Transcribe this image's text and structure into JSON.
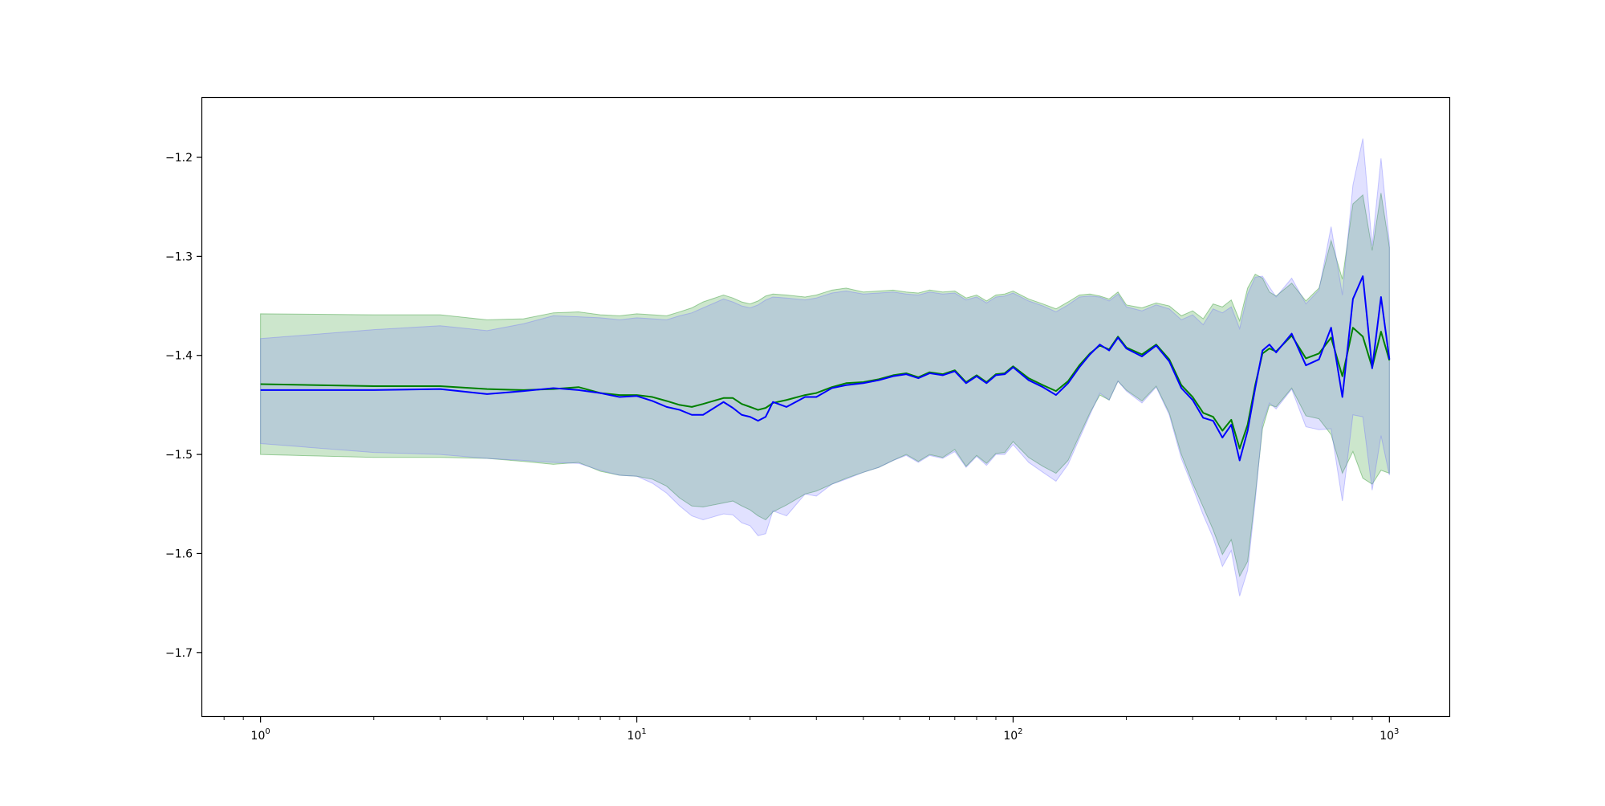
{
  "chart_data": {
    "type": "line",
    "title": "",
    "xlabel": "",
    "ylabel": "",
    "x_scale": "log",
    "xlim": [
      0.7,
      1450
    ],
    "ylim": [
      -1.765,
      -1.14
    ],
    "grid": false,
    "legend": "none",
    "x_ticks": [
      {
        "value": 1,
        "base": "10",
        "exp": "0"
      },
      {
        "value": 10,
        "base": "10",
        "exp": "1"
      },
      {
        "value": 100,
        "base": "10",
        "exp": "2"
      },
      {
        "value": 1000,
        "base": "10",
        "exp": "3"
      }
    ],
    "y_ticks": [
      {
        "value": -1.2,
        "label": "−1.2"
      },
      {
        "value": -1.3,
        "label": "−1.3"
      },
      {
        "value": -1.4,
        "label": "−1.4"
      },
      {
        "value": -1.5,
        "label": "−1.5"
      },
      {
        "value": -1.6,
        "label": "−1.6"
      },
      {
        "value": -1.7,
        "label": "−1.7"
      }
    ],
    "series": [
      {
        "color": "#008000",
        "band_color": "#008000",
        "x": [
          1,
          2,
          3,
          4,
          5,
          6,
          7,
          8,
          9,
          10,
          11,
          12,
          13,
          14,
          15,
          17,
          18,
          19,
          20,
          21,
          22,
          23,
          25,
          28,
          30,
          33,
          36,
          40,
          44,
          48,
          52,
          56,
          60,
          65,
          70,
          75,
          80,
          85,
          90,
          95,
          100,
          110,
          120,
          130,
          140,
          150,
          160,
          170,
          180,
          190,
          200,
          220,
          240,
          260,
          280,
          300,
          320,
          340,
          360,
          380,
          400,
          420,
          440,
          460,
          480,
          500,
          550,
          600,
          650,
          700,
          750,
          800,
          850,
          900,
          950,
          1000
        ],
        "y": [
          -1.429,
          -1.431,
          -1.431,
          -1.434,
          -1.435,
          -1.434,
          -1.432,
          -1.438,
          -1.44,
          -1.44,
          -1.442,
          -1.446,
          -1.45,
          -1.452,
          -1.449,
          -1.443,
          -1.443,
          -1.449,
          -1.452,
          -1.455,
          -1.453,
          -1.448,
          -1.445,
          -1.44,
          -1.438,
          -1.432,
          -1.428,
          -1.427,
          -1.424,
          -1.42,
          -1.418,
          -1.422,
          -1.417,
          -1.419,
          -1.415,
          -1.427,
          -1.42,
          -1.427,
          -1.419,
          -1.418,
          -1.411,
          -1.423,
          -1.43,
          -1.436,
          -1.426,
          -1.41,
          -1.398,
          -1.39,
          -1.394,
          -1.381,
          -1.392,
          -1.399,
          -1.389,
          -1.404,
          -1.43,
          -1.442,
          -1.458,
          -1.462,
          -1.476,
          -1.465,
          -1.494,
          -1.47,
          -1.43,
          -1.398,
          -1.393,
          -1.396,
          -1.38,
          -1.403,
          -1.398,
          -1.382,
          -1.421,
          -1.372,
          -1.381,
          -1.412,
          -1.376,
          -1.405
        ],
        "upper": [
          -1.358,
          -1.359,
          -1.359,
          -1.364,
          -1.363,
          -1.357,
          -1.356,
          -1.359,
          -1.36,
          -1.358,
          -1.359,
          -1.36,
          -1.356,
          -1.352,
          -1.346,
          -1.339,
          -1.342,
          -1.346,
          -1.348,
          -1.345,
          -1.34,
          -1.338,
          -1.339,
          -1.341,
          -1.339,
          -1.334,
          -1.332,
          -1.336,
          -1.335,
          -1.334,
          -1.336,
          -1.337,
          -1.334,
          -1.336,
          -1.335,
          -1.342,
          -1.339,
          -1.345,
          -1.339,
          -1.338,
          -1.335,
          -1.343,
          -1.348,
          -1.353,
          -1.346,
          -1.339,
          -1.338,
          -1.34,
          -1.343,
          -1.336,
          -1.349,
          -1.352,
          -1.347,
          -1.35,
          -1.36,
          -1.355,
          -1.363,
          -1.348,
          -1.351,
          -1.344,
          -1.365,
          -1.332,
          -1.318,
          -1.322,
          -1.336,
          -1.34,
          -1.327,
          -1.345,
          -1.332,
          -1.284,
          -1.323,
          -1.247,
          -1.238,
          -1.294,
          -1.236,
          -1.291
        ],
        "lower": [
          -1.5,
          -1.503,
          -1.503,
          -1.504,
          -1.507,
          -1.51,
          -1.508,
          -1.517,
          -1.521,
          -1.522,
          -1.525,
          -1.532,
          -1.544,
          -1.552,
          -1.553,
          -1.549,
          -1.547,
          -1.552,
          -1.556,
          -1.562,
          -1.566,
          -1.558,
          -1.551,
          -1.54,
          -1.537,
          -1.53,
          -1.524,
          -1.518,
          -1.513,
          -1.506,
          -1.5,
          -1.507,
          -1.5,
          -1.503,
          -1.495,
          -1.512,
          -1.501,
          -1.509,
          -1.499,
          -1.498,
          -1.487,
          -1.503,
          -1.512,
          -1.519,
          -1.506,
          -1.481,
          -1.458,
          -1.44,
          -1.445,
          -1.426,
          -1.435,
          -1.446,
          -1.431,
          -1.458,
          -1.5,
          -1.529,
          -1.553,
          -1.576,
          -1.601,
          -1.586,
          -1.623,
          -1.608,
          -1.542,
          -1.474,
          -1.45,
          -1.452,
          -1.433,
          -1.461,
          -1.464,
          -1.48,
          -1.519,
          -1.497,
          -1.524,
          -1.53,
          -1.516,
          -1.519
        ]
      },
      {
        "color": "#0000ff",
        "band_color": "#6b6bff",
        "x": [
          1,
          2,
          3,
          4,
          5,
          6,
          7,
          8,
          9,
          10,
          11,
          12,
          13,
          14,
          15,
          17,
          18,
          19,
          20,
          21,
          22,
          23,
          25,
          28,
          30,
          33,
          36,
          40,
          44,
          48,
          52,
          56,
          60,
          65,
          70,
          75,
          80,
          85,
          90,
          95,
          100,
          110,
          120,
          130,
          140,
          150,
          160,
          170,
          180,
          190,
          200,
          220,
          240,
          260,
          280,
          300,
          320,
          340,
          360,
          380,
          400,
          420,
          440,
          460,
          480,
          500,
          550,
          600,
          650,
          700,
          750,
          800,
          850,
          900,
          950,
          1000
        ],
        "y": [
          -1.435,
          -1.435,
          -1.434,
          -1.439,
          -1.436,
          -1.433,
          -1.435,
          -1.438,
          -1.442,
          -1.441,
          -1.446,
          -1.452,
          -1.455,
          -1.46,
          -1.46,
          -1.447,
          -1.453,
          -1.46,
          -1.462,
          -1.466,
          -1.462,
          -1.447,
          -1.452,
          -1.442,
          -1.442,
          -1.433,
          -1.43,
          -1.428,
          -1.425,
          -1.421,
          -1.419,
          -1.423,
          -1.418,
          -1.42,
          -1.416,
          -1.428,
          -1.421,
          -1.428,
          -1.42,
          -1.419,
          -1.412,
          -1.425,
          -1.432,
          -1.44,
          -1.428,
          -1.412,
          -1.399,
          -1.389,
          -1.395,
          -1.382,
          -1.393,
          -1.401,
          -1.39,
          -1.406,
          -1.433,
          -1.445,
          -1.463,
          -1.466,
          -1.483,
          -1.47,
          -1.506,
          -1.476,
          -1.433,
          -1.395,
          -1.389,
          -1.397,
          -1.378,
          -1.41,
          -1.404,
          -1.372,
          -1.442,
          -1.343,
          -1.32,
          -1.413,
          -1.341,
          -1.404
        ],
        "upper": [
          -1.383,
          -1.374,
          -1.37,
          -1.375,
          -1.368,
          -1.36,
          -1.361,
          -1.362,
          -1.364,
          -1.362,
          -1.363,
          -1.364,
          -1.36,
          -1.357,
          -1.352,
          -1.343,
          -1.346,
          -1.35,
          -1.352,
          -1.349,
          -1.344,
          -1.341,
          -1.342,
          -1.344,
          -1.342,
          -1.337,
          -1.335,
          -1.338,
          -1.337,
          -1.336,
          -1.338,
          -1.339,
          -1.336,
          -1.338,
          -1.337,
          -1.344,
          -1.341,
          -1.347,
          -1.341,
          -1.34,
          -1.337,
          -1.345,
          -1.35,
          -1.356,
          -1.349,
          -1.341,
          -1.34,
          -1.341,
          -1.345,
          -1.338,
          -1.351,
          -1.355,
          -1.349,
          -1.353,
          -1.364,
          -1.359,
          -1.369,
          -1.353,
          -1.357,
          -1.351,
          -1.373,
          -1.338,
          -1.321,
          -1.32,
          -1.331,
          -1.341,
          -1.322,
          -1.348,
          -1.334,
          -1.27,
          -1.339,
          -1.228,
          -1.181,
          -1.289,
          -1.201,
          -1.286
        ],
        "lower": [
          -1.489,
          -1.498,
          -1.5,
          -1.504,
          -1.506,
          -1.508,
          -1.509,
          -1.516,
          -1.521,
          -1.522,
          -1.529,
          -1.539,
          -1.552,
          -1.562,
          -1.566,
          -1.56,
          -1.561,
          -1.569,
          -1.572,
          -1.582,
          -1.58,
          -1.557,
          -1.562,
          -1.54,
          -1.542,
          -1.53,
          -1.525,
          -1.518,
          -1.513,
          -1.506,
          -1.501,
          -1.508,
          -1.501,
          -1.504,
          -1.497,
          -1.513,
          -1.502,
          -1.511,
          -1.5,
          -1.5,
          -1.49,
          -1.508,
          -1.518,
          -1.527,
          -1.51,
          -1.484,
          -1.46,
          -1.438,
          -1.445,
          -1.426,
          -1.436,
          -1.448,
          -1.432,
          -1.46,
          -1.504,
          -1.533,
          -1.561,
          -1.584,
          -1.613,
          -1.597,
          -1.643,
          -1.617,
          -1.547,
          -1.469,
          -1.448,
          -1.454,
          -1.434,
          -1.472,
          -1.475,
          -1.474,
          -1.547,
          -1.46,
          -1.462,
          -1.536,
          -1.481,
          -1.521
        ]
      }
    ]
  }
}
